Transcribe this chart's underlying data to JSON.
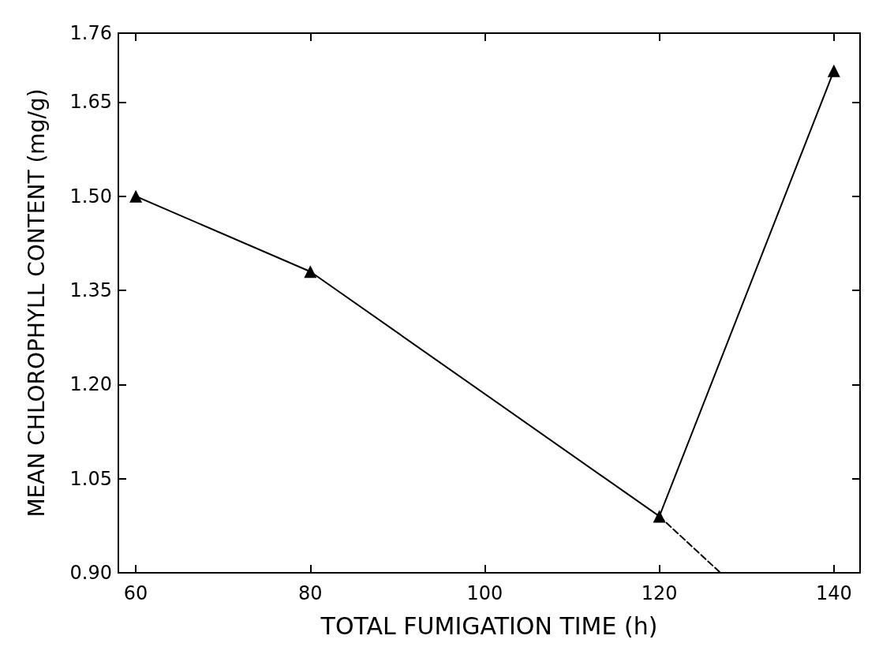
{
  "chart_data": {
    "type": "line",
    "xlabel": "TOTAL FUMIGATION TIME (h)",
    "ylabel": "MEAN CHLOROPHYLL CONTENT (mg/g)",
    "xlim": [
      58,
      143
    ],
    "xticks": [
      60,
      80,
      100,
      120,
      140
    ],
    "ylim": [
      0.9,
      1.76
    ],
    "yticks": [
      {
        "value": 0.9,
        "label": "0.90"
      },
      {
        "value": 1.05,
        "label": "1.05"
      },
      {
        "value": 1.2,
        "label": "1.20"
      },
      {
        "value": 1.35,
        "label": "1.35"
      },
      {
        "value": 1.5,
        "label": "1.50"
      },
      {
        "value": 1.65,
        "label": "1.65"
      },
      {
        "value": 1.76,
        "label": "1.76"
      }
    ],
    "series": [
      {
        "color": "#000000",
        "x": [
          60,
          80,
          120,
          140
        ],
        "values": [
          1.5,
          1.38,
          0.99,
          1.7
        ],
        "marker": "triangle",
        "line_style": "solid"
      },
      {
        "color": "#000000",
        "x": [
          120,
          127
        ],
        "values": [
          0.99,
          0.9
        ],
        "marker": "none",
        "line_style": "dashed"
      }
    ]
  }
}
